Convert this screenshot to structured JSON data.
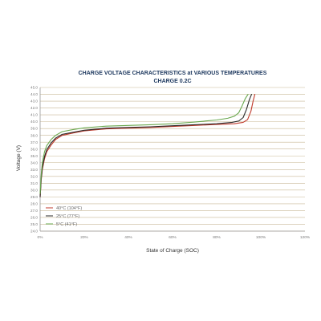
{
  "chart_data": {
    "type": "line",
    "title": "CHARGE VOLTAGE CHARACTERISTICS at VARIOUS TEMPERATURES",
    "subtitle": "CHARGE 0.2C",
    "xlabel": "State of Charge (SOC)",
    "ylabel": "Voltage (V)",
    "xlim": [
      0,
      120
    ],
    "ylim": [
      24,
      45
    ],
    "x_ticks": [
      "0%",
      "20%",
      "40%",
      "60%",
      "80%",
      "100%",
      "120%"
    ],
    "y_ticks": [
      "24.0",
      "25.0",
      "26.0",
      "27.0",
      "28.0",
      "29.0",
      "30.0",
      "31.0",
      "32.0",
      "33.0",
      "34.0",
      "35.0",
      "36.0",
      "37.0",
      "38.0",
      "39.0",
      "40.0",
      "41.0",
      "42.0",
      "43.0",
      "44.0",
      "45.0"
    ],
    "grid": true,
    "legend_position": "bottom-left",
    "colors": {
      "grid": "#c8b896",
      "axis": "#9a9a9a",
      "title": "#1f3a60"
    },
    "series": [
      {
        "name": "40°C (104°F)",
        "color": "#c0392b",
        "x": [
          0,
          0.5,
          1,
          2,
          3,
          5,
          7,
          10,
          15,
          20,
          30,
          40,
          50,
          60,
          70,
          80,
          88,
          92,
          94,
          95.5,
          96.5,
          97.3
        ],
        "y": [
          29.0,
          31.5,
          33.0,
          34.6,
          35.6,
          36.6,
          37.4,
          38.0,
          38.35,
          38.65,
          38.95,
          39.05,
          39.15,
          39.3,
          39.45,
          39.6,
          39.7,
          39.9,
          40.3,
          41.5,
          43.0,
          44.0
        ]
      },
      {
        "name": "25°C (77°F)",
        "color": "#2b2b2b",
        "x": [
          0,
          0.5,
          1,
          2,
          3,
          5,
          7,
          10,
          15,
          20,
          30,
          40,
          50,
          60,
          70,
          80,
          87,
          90,
          92,
          93.5,
          94.8,
          95.8
        ],
        "y": [
          29.0,
          31.7,
          33.3,
          34.9,
          35.9,
          36.9,
          37.6,
          38.15,
          38.45,
          38.75,
          39.05,
          39.15,
          39.25,
          39.4,
          39.55,
          39.7,
          39.9,
          40.1,
          40.6,
          41.8,
          43.2,
          44.0
        ]
      },
      {
        "name": "5°C (41°F)",
        "color": "#6aa84f",
        "x": [
          0,
          0.5,
          1,
          2,
          3,
          5,
          7,
          10,
          15,
          20,
          30,
          40,
          50,
          60,
          70,
          80,
          85,
          88,
          90,
          91.5,
          93,
          94.2
        ],
        "y": [
          29.5,
          32.3,
          34.0,
          35.6,
          36.5,
          37.4,
          38.0,
          38.55,
          38.85,
          39.1,
          39.35,
          39.45,
          39.55,
          39.7,
          39.95,
          40.25,
          40.5,
          40.8,
          41.3,
          42.3,
          43.4,
          44.0
        ]
      }
    ]
  }
}
